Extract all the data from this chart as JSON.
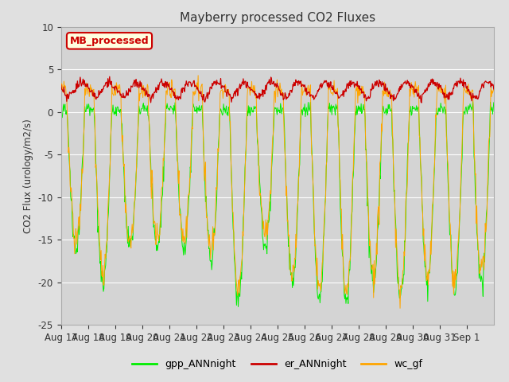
{
  "title": "Mayberry processed CO2 Fluxes",
  "ylabel": "CO2 Flux (urology/m2/s)",
  "ylim": [
    -25,
    10
  ],
  "yticks": [
    10,
    5,
    0,
    -5,
    -10,
    -15,
    -20,
    -25
  ],
  "fig_bg_color": "#e0e0e0",
  "plot_bg_color": "#d4d4d4",
  "line_colors": {
    "gpp": "#00ee00",
    "er": "#cc0000",
    "wc": "#ffa500"
  },
  "legend_entries": [
    "gpp_ANNnight",
    "er_ANNnight",
    "wc_gf"
  ],
  "inset_label": "MB_processed",
  "inset_label_color": "#cc0000",
  "n_days": 16,
  "pts_per_day": 48,
  "tick_labels": [
    "Aug 17",
    "Aug 18",
    "Aug 19",
    "Aug 20",
    "Aug 21",
    "Aug 22",
    "Aug 23",
    "Aug 24",
    "Aug 25",
    "Aug 26",
    "Aug 27",
    "Aug 28",
    "Aug 29",
    "Aug 30",
    "Aug 31",
    "Sep 1"
  ]
}
